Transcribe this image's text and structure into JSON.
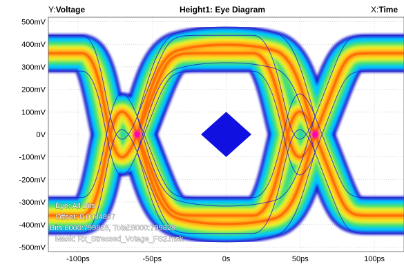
{
  "header": {
    "y_prefix": "Y:",
    "y_label": "Voltage",
    "title": "Height1: Eye Diagram",
    "x_prefix": "X:",
    "x_label": "Time"
  },
  "chart_data": {
    "type": "heatmap",
    "subtype": "eye-diagram",
    "title": "Height1: Eye Diagram",
    "xlabel": "Time",
    "ylabel": "Voltage",
    "x_unit": "ps",
    "y_unit": "mV",
    "xlim": [
      -120,
      120
    ],
    "ylim": [
      -520,
      520
    ],
    "x_ticks": [
      -100,
      -50,
      0,
      50,
      100
    ],
    "x_tick_labels": [
      "-100ps",
      "-50ps",
      "0s",
      "50ps",
      "100ps"
    ],
    "y_ticks": [
      500,
      400,
      300,
      200,
      100,
      0,
      -100,
      -200,
      -300,
      -400,
      -500
    ],
    "y_tick_labels": [
      "500mV",
      "400mV",
      "300mV",
      "200mV",
      "100mV",
      "0V",
      "-100mV",
      "-200mV",
      "-300mV",
      "-400mV",
      "-500mV"
    ],
    "grid": true,
    "crossing_points_ps": [
      -60,
      60
    ],
    "high_level_mv": 360,
    "low_level_mv": -360,
    "mask": {
      "name": "Rx_Stressed_Votage_FS2.msk",
      "shape": "diamond",
      "center": [
        0,
        0
      ],
      "half_width_ps": 17,
      "half_height_mv": 100,
      "color": "#1010e0"
    },
    "density_colors": [
      "#1a1ad0",
      "#00c8ff",
      "#44e07a",
      "#ccf040",
      "#ffe31a",
      "#ffa21a",
      "#ff6a00",
      "#ff00b4"
    ],
    "annotations": [
      "Eye: All Bits",
      "Offset: 0.0084867",
      "Bits:8000:799828, Total:8000:799828",
      "Mask: Rx_Stressed_Votage_FS2.msk"
    ]
  }
}
